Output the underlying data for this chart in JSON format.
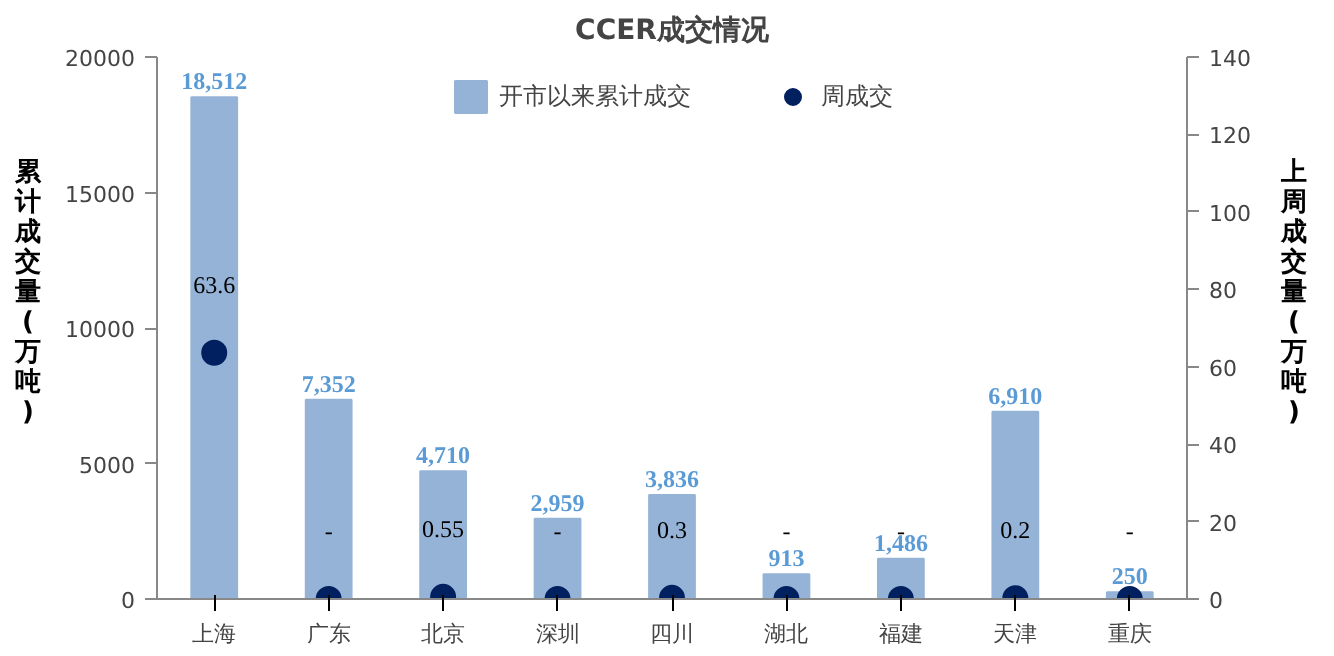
{
  "chart_data": {
    "type": "bar",
    "title": "CCER成交情况",
    "ylabel": "累计成交量(万吨)",
    "y2label": "上周成交量(万吨)",
    "categories": [
      "上海",
      "广东",
      "北京",
      "深圳",
      "四川",
      "湖北",
      "福建",
      "天津",
      "重庆"
    ],
    "series": [
      {
        "name": "开市以来累计成交",
        "color": "#95b3d7",
        "values": [
          18512,
          7352,
          4710,
          2959,
          3836,
          913,
          1486,
          6910,
          250
        ],
        "value_labels": [
          "18,512",
          "7,352",
          "4,710",
          "2,959",
          "3,836",
          "913",
          "1,486",
          "6,910",
          "250"
        ]
      },
      {
        "name": "周成交",
        "type": "scatter",
        "axis": "y2",
        "color": "#002060",
        "values": [
          63.6,
          0,
          0.55,
          0,
          0.3,
          0,
          0,
          0.2,
          0
        ],
        "value_labels": [
          "63.6",
          "-",
          "0.55",
          "-",
          "0.3",
          "-",
          "-",
          "0.2",
          "-"
        ]
      }
    ],
    "ylim": [
      0,
      20000
    ],
    "yticks": [
      0,
      5000,
      10000,
      15000,
      20000
    ],
    "y2lim": [
      0,
      140
    ],
    "y2ticks": [
      0,
      20,
      40,
      60,
      80,
      100,
      120,
      140
    ],
    "legend": "top",
    "grid": false,
    "marker": "circle"
  }
}
